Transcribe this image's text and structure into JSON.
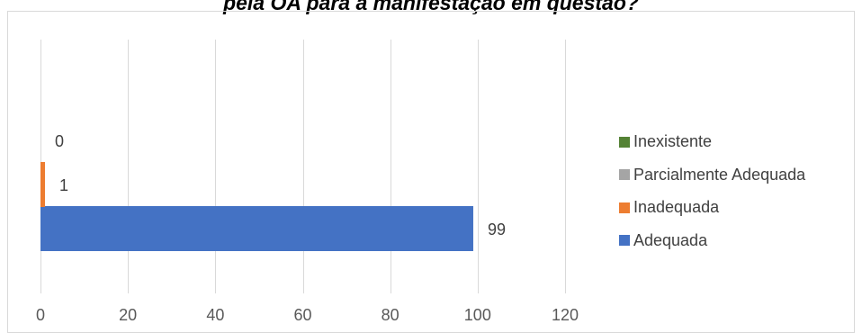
{
  "chart_data": {
    "type": "bar",
    "orientation": "horizontal",
    "title": "pela OA para a manifestação em questão?",
    "xlabel": "",
    "ylabel": "",
    "xlim": [
      0,
      120
    ],
    "x_ticks": [
      0,
      20,
      40,
      60,
      80,
      100,
      120
    ],
    "grid": true,
    "legend_position": "right",
    "series": [
      {
        "name": "Adequada",
        "value": 99,
        "color": "#4472C4"
      },
      {
        "name": "Inadequada",
        "value": 1,
        "color": "#ED7D31"
      },
      {
        "name": "Parcialmente Adequada",
        "value": 0,
        "color": "#A5A5A5"
      },
      {
        "name": "Inexistente",
        "value": 0,
        "color": "#548235"
      }
    ],
    "data_labels_visible": [
      "99",
      "1",
      "0"
    ]
  }
}
